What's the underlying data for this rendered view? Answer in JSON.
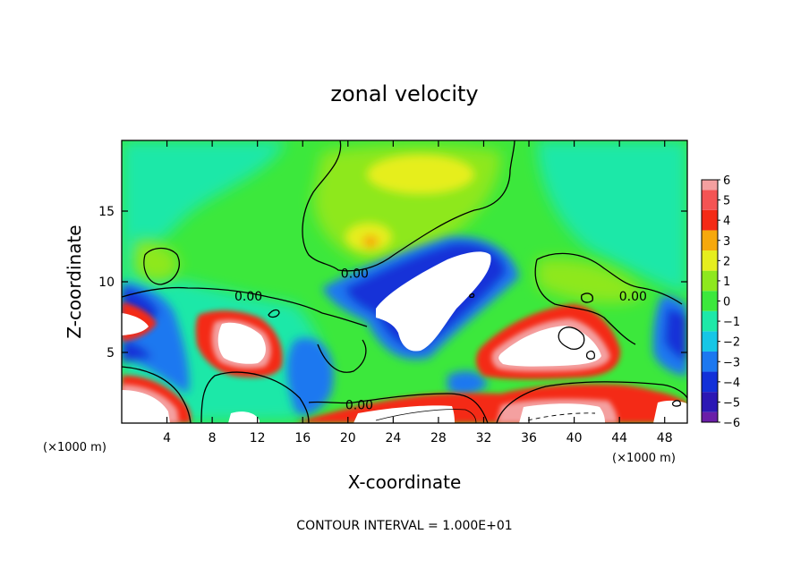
{
  "chart_data": {
    "type": "heatmap",
    "title": "zonal velocity",
    "xlabel": "X-coordinate",
    "ylabel": "Z-coordinate",
    "x_unit_label": "(×1000 m)",
    "x_unit_label_right": "(×1000 m)",
    "xlim": [
      0,
      50
    ],
    "ylim": [
      0,
      20
    ],
    "x_ticks": [
      4,
      8,
      12,
      16,
      20,
      24,
      28,
      32,
      36,
      40,
      44,
      48
    ],
    "x_tick_labels": [
      "4",
      "8",
      "12",
      "16",
      "20",
      "24",
      "28",
      "32",
      "36",
      "40",
      "44",
      "48"
    ],
    "y_ticks": [
      5,
      10,
      15
    ],
    "y_tick_labels": [
      "5",
      "10",
      "15"
    ],
    "colorbar": {
      "levels": [
        -6,
        -5,
        -4,
        -3,
        -2,
        -1,
        0,
        1,
        2,
        3,
        4,
        5,
        6
      ],
      "labels": [
        "−6",
        "−5",
        "−4",
        "−3",
        "−2",
        "−1",
        "0",
        "1",
        "2",
        "3",
        "4",
        "5",
        "6"
      ],
      "colors": [
        "#6a1ea8",
        "#2c18b4",
        "#1230d8",
        "#1c78f0",
        "#16c6e6",
        "#1ee8a8",
        "#3ce83c",
        "#8ee81e",
        "#e6ee1e",
        "#f6a80c",
        "#f42a16",
        "#f45454",
        "#f4a0a0"
      ],
      "saturated_color": "#ffffff"
    },
    "contour_labels": [
      {
        "text": "0.00",
        "x": 20.6,
        "z": 10.6
      },
      {
        "text": "0.00",
        "x": 11.2,
        "z": 9.0
      },
      {
        "text": "0.00",
        "x": 45.2,
        "z": 9.0
      },
      {
        "text": "0.00",
        "x": 21.0,
        "z": 1.3
      }
    ],
    "annotation": "CONTOUR INTERVAL = 1.000E+01",
    "grid": false,
    "legend": "colorbar-right"
  }
}
